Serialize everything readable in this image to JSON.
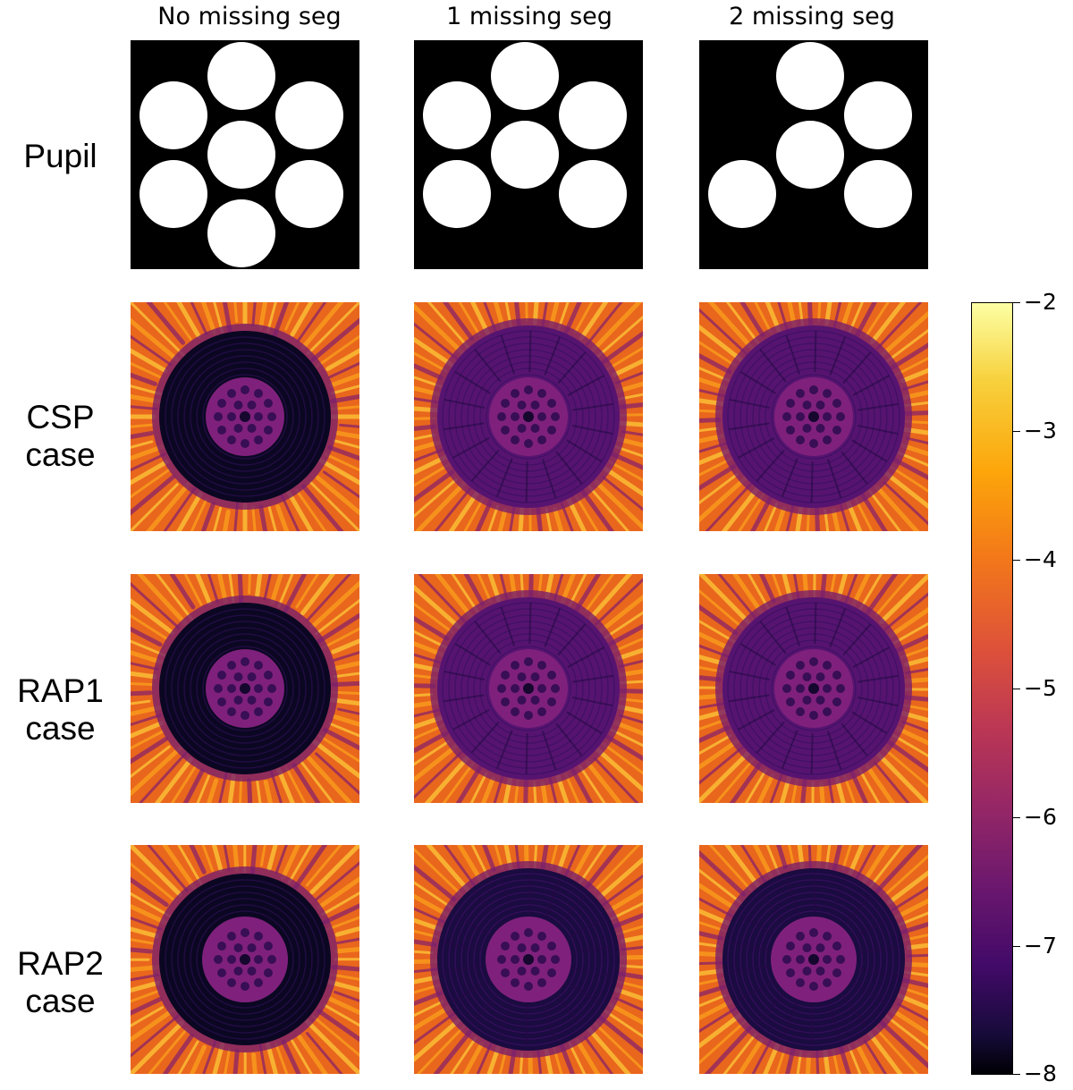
{
  "columns": [
    {
      "label": "No missing seg"
    },
    {
      "label": "1 missing seg"
    },
    {
      "label": "2 missing seg"
    }
  ],
  "rows": [
    {
      "label_lines": [
        "Pupil"
      ]
    },
    {
      "label_lines": [
        "CSP",
        "case"
      ]
    },
    {
      "label_lines": [
        "RAP1",
        "case"
      ]
    },
    {
      "label_lines": [
        "RAP2",
        "case"
      ]
    }
  ],
  "colorbar": {
    "colormap": "inferno",
    "min": -8,
    "max": -2,
    "tick_labels": [
      "−2",
      "−3",
      "−4",
      "−5",
      "−6",
      "−7",
      "−8"
    ]
  },
  "pupils": [
    {
      "segments": [
        "top",
        "upper-left",
        "upper-right",
        "center",
        "lower-left",
        "lower-right",
        "bottom"
      ]
    },
    {
      "segments": [
        "top",
        "upper-left",
        "upper-right",
        "center",
        "lower-left",
        "lower-right"
      ]
    },
    {
      "segments": [
        "top",
        "upper-right",
        "center",
        "lower-left",
        "lower-right"
      ]
    }
  ],
  "psf_maps": [
    {
      "case": "CSP",
      "dark_hole_depth": [
        "very dark",
        "medium",
        "medium"
      ]
    },
    {
      "case": "RAP1",
      "dark_hole_depth": [
        "very dark",
        "medium",
        "medium"
      ]
    },
    {
      "case": "RAP2",
      "dark_hole_depth": [
        "very dark",
        "dark",
        "dark"
      ]
    }
  ]
}
